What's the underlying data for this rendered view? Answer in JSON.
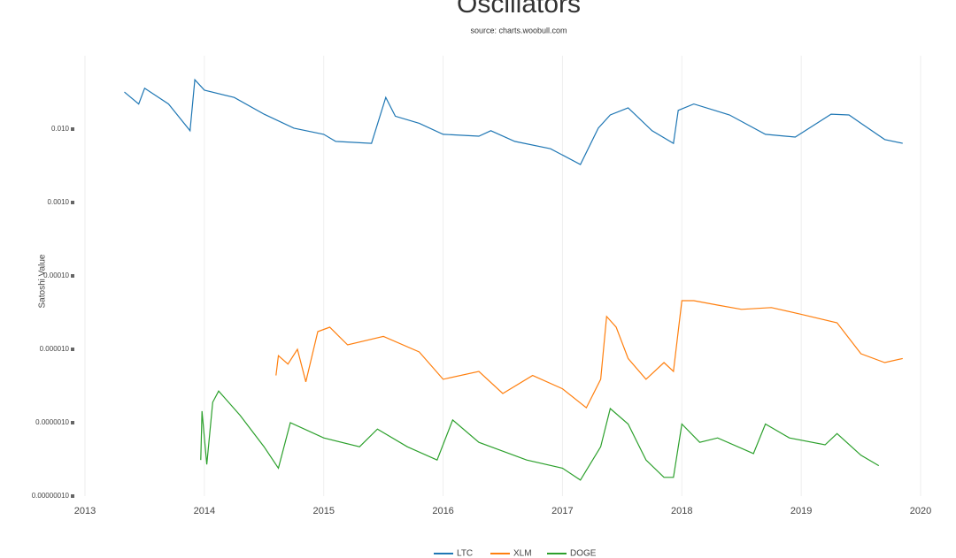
{
  "chart_data": {
    "type": "line",
    "title": "Oscillators",
    "subtitle": "source: charts.woobull.com",
    "y_label": "Satoshi Value",
    "log_scale": true,
    "grid": true,
    "xlim": [
      2013,
      2020
    ],
    "xticks": [
      2013,
      2014,
      2015,
      2016,
      2017,
      2018,
      2019,
      2020
    ],
    "ylim": [
      1e-07,
      0.1
    ],
    "yticks": [
      {
        "value": 1e-07,
        "label": "0.00000010"
      },
      {
        "value": 1e-06,
        "label": "0.0000010"
      },
      {
        "value": 1e-05,
        "label": "0.000010"
      },
      {
        "value": 0.0001,
        "label": "0.00010"
      },
      {
        "value": 0.001,
        "label": "0.0010"
      },
      {
        "value": 0.01,
        "label": "0.010"
      }
    ],
    "series": [
      {
        "name": "LTC",
        "color": "#1f77b4",
        "x": [
          2013.33,
          2013.45,
          2013.5,
          2013.7,
          2013.88,
          2013.92,
          2014.0,
          2014.25,
          2014.5,
          2014.75,
          2015.0,
          2015.1,
          2015.4,
          2015.52,
          2015.6,
          2015.8,
          2016.0,
          2016.3,
          2016.4,
          2016.6,
          2016.9,
          2017.15,
          2017.3,
          2017.4,
          2017.55,
          2017.75,
          2017.93,
          2017.97,
          2018.1,
          2018.4,
          2018.7,
          2018.95,
          2019.25,
          2019.4,
          2019.5,
          2019.7,
          2019.85
        ],
        "values": [
          0.032,
          0.022,
          0.036,
          0.022,
          0.0095,
          0.047,
          0.034,
          0.027,
          0.016,
          0.0103,
          0.0085,
          0.0068,
          0.0064,
          0.027,
          0.015,
          0.012,
          0.0085,
          0.008,
          0.0095,
          0.0068,
          0.0054,
          0.0033,
          0.0103,
          0.0156,
          0.0195,
          0.0095,
          0.0064,
          0.018,
          0.022,
          0.0156,
          0.0085,
          0.0078,
          0.016,
          0.0156,
          0.012,
          0.0072,
          0.0064
        ]
      },
      {
        "name": "XLM",
        "color": "#ff7f0e",
        "x": [
          2014.6,
          2014.62,
          2014.7,
          2014.78,
          2014.85,
          2014.95,
          2015.05,
          2015.2,
          2015.5,
          2015.8,
          2016.0,
          2016.3,
          2016.5,
          2016.75,
          2017.0,
          2017.2,
          2017.32,
          2017.37,
          2017.45,
          2017.55,
          2017.7,
          2017.85,
          2017.93,
          2018.0,
          2018.1,
          2018.3,
          2018.5,
          2018.75,
          2019.0,
          2019.3,
          2019.5,
          2019.7,
          2019.85
        ],
        "values": [
          4.4e-06,
          8.2e-06,
          6.3e-06,
          1e-05,
          3.6e-06,
          1.74e-05,
          2e-05,
          1.15e-05,
          1.5e-05,
          9.2e-06,
          3.9e-06,
          5e-06,
          2.5e-06,
          4.4e-06,
          2.9e-06,
          1.6e-06,
          3.9e-06,
          2.8e-05,
          2e-05,
          7.5e-06,
          3.9e-06,
          6.6e-06,
          5e-06,
          4.6e-05,
          4.6e-05,
          4e-05,
          3.5e-05,
          3.7e-05,
          3e-05,
          2.3e-05,
          8.7e-06,
          6.6e-06,
          7.5e-06
        ]
      },
      {
        "name": "DOGE",
        "color": "#2ca02c",
        "x": [
          2013.97,
          2013.98,
          2014.02,
          2014.07,
          2014.12,
          2014.3,
          2014.5,
          2014.62,
          2014.72,
          2015.0,
          2015.3,
          2015.45,
          2015.7,
          2015.95,
          2016.08,
          2016.3,
          2016.7,
          2017.0,
          2017.15,
          2017.32,
          2017.4,
          2017.55,
          2017.7,
          2017.85,
          2017.93,
          2018.0,
          2018.15,
          2018.3,
          2018.6,
          2018.7,
          2018.9,
          2019.2,
          2019.3,
          2019.5,
          2019.65
        ],
        "values": [
          3.1e-07,
          1.44e-06,
          2.7e-07,
          1.9e-06,
          2.7e-06,
          1.26e-06,
          4.7e-07,
          2.4e-07,
          1e-06,
          6.2e-07,
          4.7e-07,
          8.2e-07,
          4.7e-07,
          3.1e-07,
          1.09e-06,
          5.4e-07,
          3.1e-07,
          2.4e-07,
          1.65e-07,
          4.7e-07,
          1.56e-06,
          9.6e-07,
          3.1e-07,
          1.8e-07,
          1.8e-07,
          9.6e-07,
          5.4e-07,
          6.2e-07,
          3.8e-07,
          9.6e-07,
          6.2e-07,
          5e-07,
          7.1e-07,
          3.6e-07,
          2.6e-07
        ]
      }
    ]
  }
}
